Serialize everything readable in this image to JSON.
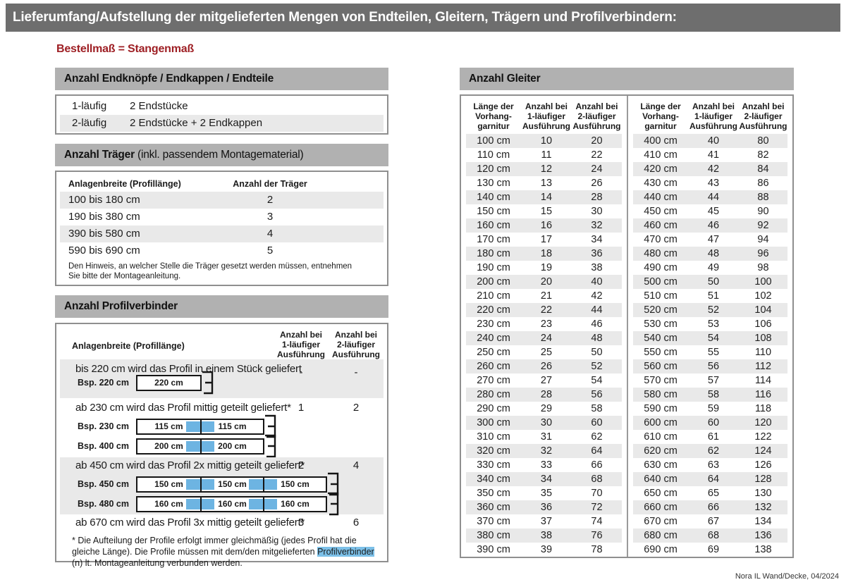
{
  "colors": {
    "topbar": "#6e6e6e",
    "section_header": "#b1b1b1",
    "stripe": "#e9e9e9",
    "accent_red": "#9e1f24",
    "connector_blue": "#6db4e2",
    "highlight_blue": "#7cc0e8",
    "table_border": "#8f8f8f"
  },
  "page": {
    "title": "Lieferumfang/Aufstellung der mitgelieferten Mengen von Endteilen, Gleitern, Trägern und Profilverbindern:",
    "subtitle": "Bestellmaß = Stangenmaß",
    "footer": "Nora IL Wand/Decke, 04/2024"
  },
  "endteile": {
    "header": "Anzahl Endknöpfe / Endkappen / Endteile",
    "rows": [
      {
        "label": "1-läufig",
        "value": "2 Endstücke"
      },
      {
        "label": "2-läufig",
        "value": "2 Endstücke + 2 Endkappen"
      }
    ]
  },
  "traeger": {
    "header_bold": "Anzahl Träger",
    "header_rest": " (inkl. passendem Montagematerial)",
    "col1": "Anlagenbreite (Profillänge)",
    "col2": "Anzahl der Träger",
    "rows": [
      {
        "range": "100 bis 180 cm",
        "count": "2"
      },
      {
        "range": "190 bis 380 cm",
        "count": "3"
      },
      {
        "range": "390 bis 580 cm",
        "count": "4"
      },
      {
        "range": "590 bis 690 cm",
        "count": "5"
      }
    ],
    "note": "Den Hinweis, an welcher Stelle die Träger gesetzt werden müssen, entnehmen Sie bitte der Montageanleitung."
  },
  "profilverbinder": {
    "header": "Anzahl Profilverbinder",
    "col1": "Anlagenbreite (Profillänge)",
    "col2_lines": [
      "Anzahl bei",
      "1-läufiger",
      "Ausführung"
    ],
    "col3_lines": [
      "Anzahl bei",
      "2-läufiger",
      "Ausführung"
    ],
    "rows": [
      {
        "text": "bis 220 cm wird das Profil in einem Stück geliefert",
        "v1": "-",
        "v2": "-",
        "diagrams": [
          {
            "label": "Bsp. 220 cm",
            "segments": [
              "220 cm"
            ]
          }
        ]
      },
      {
        "text": "ab 230 cm wird das Profil mittig geteilt geliefert*",
        "v1": "1",
        "v2": "2",
        "diagrams": [
          {
            "label": "Bsp. 230 cm",
            "segments": [
              "115 cm",
              "115 cm"
            ]
          },
          {
            "label": "Bsp. 400 cm",
            "segments": [
              "200 cm",
              "200 cm"
            ]
          }
        ]
      },
      {
        "text": "ab 450 cm wird das Profil 2x mittig geteilt geliefert*",
        "v1": "2",
        "v2": "4",
        "diagrams": [
          {
            "label": "Bsp. 450 cm",
            "segments": [
              "150 cm",
              "150 cm",
              "150 cm"
            ]
          },
          {
            "label": "Bsp. 480 cm",
            "segments": [
              "160 cm",
              "160 cm",
              "160 cm"
            ]
          }
        ]
      },
      {
        "text": "ab 670 cm wird das Profil 3x mittig geteilt geliefert*",
        "v1": "3",
        "v2": "6",
        "diagrams": []
      }
    ],
    "footnote": {
      "pre": "* Die Aufteilung der Profile erfolgt immer gleichmäßig (jedes Profil hat die gleiche Länge). Die Profile müssen mit dem/den mitgelieferten ",
      "highlight": "Profilverbinder",
      "post": " (n) lt. Montageanleitung verbunden werden."
    }
  },
  "gleiter": {
    "header": "Anzahl Gleiter",
    "columns": [
      [
        "Länge der",
        "Vorhang-",
        "garnitur"
      ],
      [
        "Anzahl bei",
        "1-läufiger",
        "Ausführung"
      ],
      [
        "Anzahl bei",
        "2-läufiger",
        "Ausführung"
      ]
    ],
    "left_rows": [
      [
        "100 cm",
        "10",
        "20"
      ],
      [
        "110 cm",
        "11",
        "22"
      ],
      [
        "120 cm",
        "12",
        "24"
      ],
      [
        "130 cm",
        "13",
        "26"
      ],
      [
        "140 cm",
        "14",
        "28"
      ],
      [
        "150 cm",
        "15",
        "30"
      ],
      [
        "160 cm",
        "16",
        "32"
      ],
      [
        "170 cm",
        "17",
        "34"
      ],
      [
        "180 cm",
        "18",
        "36"
      ],
      [
        "190 cm",
        "19",
        "38"
      ],
      [
        "200 cm",
        "20",
        "40"
      ],
      [
        "210 cm",
        "21",
        "42"
      ],
      [
        "220 cm",
        "22",
        "44"
      ],
      [
        "230 cm",
        "23",
        "46"
      ],
      [
        "240 cm",
        "24",
        "48"
      ],
      [
        "250 cm",
        "25",
        "50"
      ],
      [
        "260 cm",
        "26",
        "52"
      ],
      [
        "270 cm",
        "27",
        "54"
      ],
      [
        "280 cm",
        "28",
        "56"
      ],
      [
        "290 cm",
        "29",
        "58"
      ],
      [
        "300 cm",
        "30",
        "60"
      ],
      [
        "310 cm",
        "31",
        "62"
      ],
      [
        "320 cm",
        "32",
        "64"
      ],
      [
        "330 cm",
        "33",
        "66"
      ],
      [
        "340 cm",
        "34",
        "68"
      ],
      [
        "350 cm",
        "35",
        "70"
      ],
      [
        "360 cm",
        "36",
        "72"
      ],
      [
        "370 cm",
        "37",
        "74"
      ],
      [
        "380 cm",
        "38",
        "76"
      ],
      [
        "390 cm",
        "39",
        "78"
      ]
    ],
    "right_rows": [
      [
        "400 cm",
        "40",
        "80"
      ],
      [
        "410 cm",
        "41",
        "82"
      ],
      [
        "420 cm",
        "42",
        "84"
      ],
      [
        "430 cm",
        "43",
        "86"
      ],
      [
        "440 cm",
        "44",
        "88"
      ],
      [
        "450 cm",
        "45",
        "90"
      ],
      [
        "460 cm",
        "46",
        "92"
      ],
      [
        "470 cm",
        "47",
        "94"
      ],
      [
        "480 cm",
        "48",
        "96"
      ],
      [
        "490 cm",
        "49",
        "98"
      ],
      [
        "500 cm",
        "50",
        "100"
      ],
      [
        "510 cm",
        "51",
        "102"
      ],
      [
        "520 cm",
        "52",
        "104"
      ],
      [
        "530 cm",
        "53",
        "106"
      ],
      [
        "540 cm",
        "54",
        "108"
      ],
      [
        "550 cm",
        "55",
        "110"
      ],
      [
        "560 cm",
        "56",
        "112"
      ],
      [
        "570 cm",
        "57",
        "114"
      ],
      [
        "580 cm",
        "58",
        "116"
      ],
      [
        "590 cm",
        "59",
        "118"
      ],
      [
        "600 cm",
        "60",
        "120"
      ],
      [
        "610 cm",
        "61",
        "122"
      ],
      [
        "620 cm",
        "62",
        "124"
      ],
      [
        "630 cm",
        "63",
        "126"
      ],
      [
        "640 cm",
        "64",
        "128"
      ],
      [
        "650 cm",
        "65",
        "130"
      ],
      [
        "660 cm",
        "66",
        "132"
      ],
      [
        "670 cm",
        "67",
        "134"
      ],
      [
        "680 cm",
        "68",
        "136"
      ],
      [
        "690 cm",
        "69",
        "138"
      ]
    ]
  }
}
